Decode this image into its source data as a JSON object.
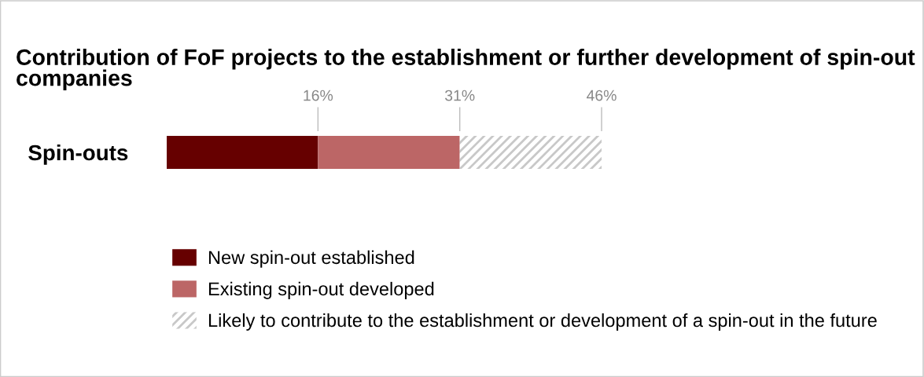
{
  "chart_data": {
    "type": "bar",
    "orientation": "horizontal",
    "stacked": true,
    "title": "Contribution of FoF projects to the establishment or further development of spin-out companies",
    "categories": [
      "Spin-outs"
    ],
    "series": [
      {
        "name": "New spin-out established",
        "color": "#660000",
        "values": [
          16
        ]
      },
      {
        "name": "Existing spin-out developed",
        "color": "#bc6666",
        "values": [
          15
        ]
      },
      {
        "name": "Likely to contribute to the establishment or development of a spin-out in the future",
        "color": "#c8c8c8",
        "values": [
          15
        ]
      }
    ],
    "xlim": [
      0,
      46
    ],
    "xticks": [
      {
        "value": 16,
        "label": "16%"
      },
      {
        "value": 31,
        "label": "31%"
      },
      {
        "value": 46,
        "label": "46%"
      }
    ],
    "legend": "bottom",
    "grid": false
  }
}
